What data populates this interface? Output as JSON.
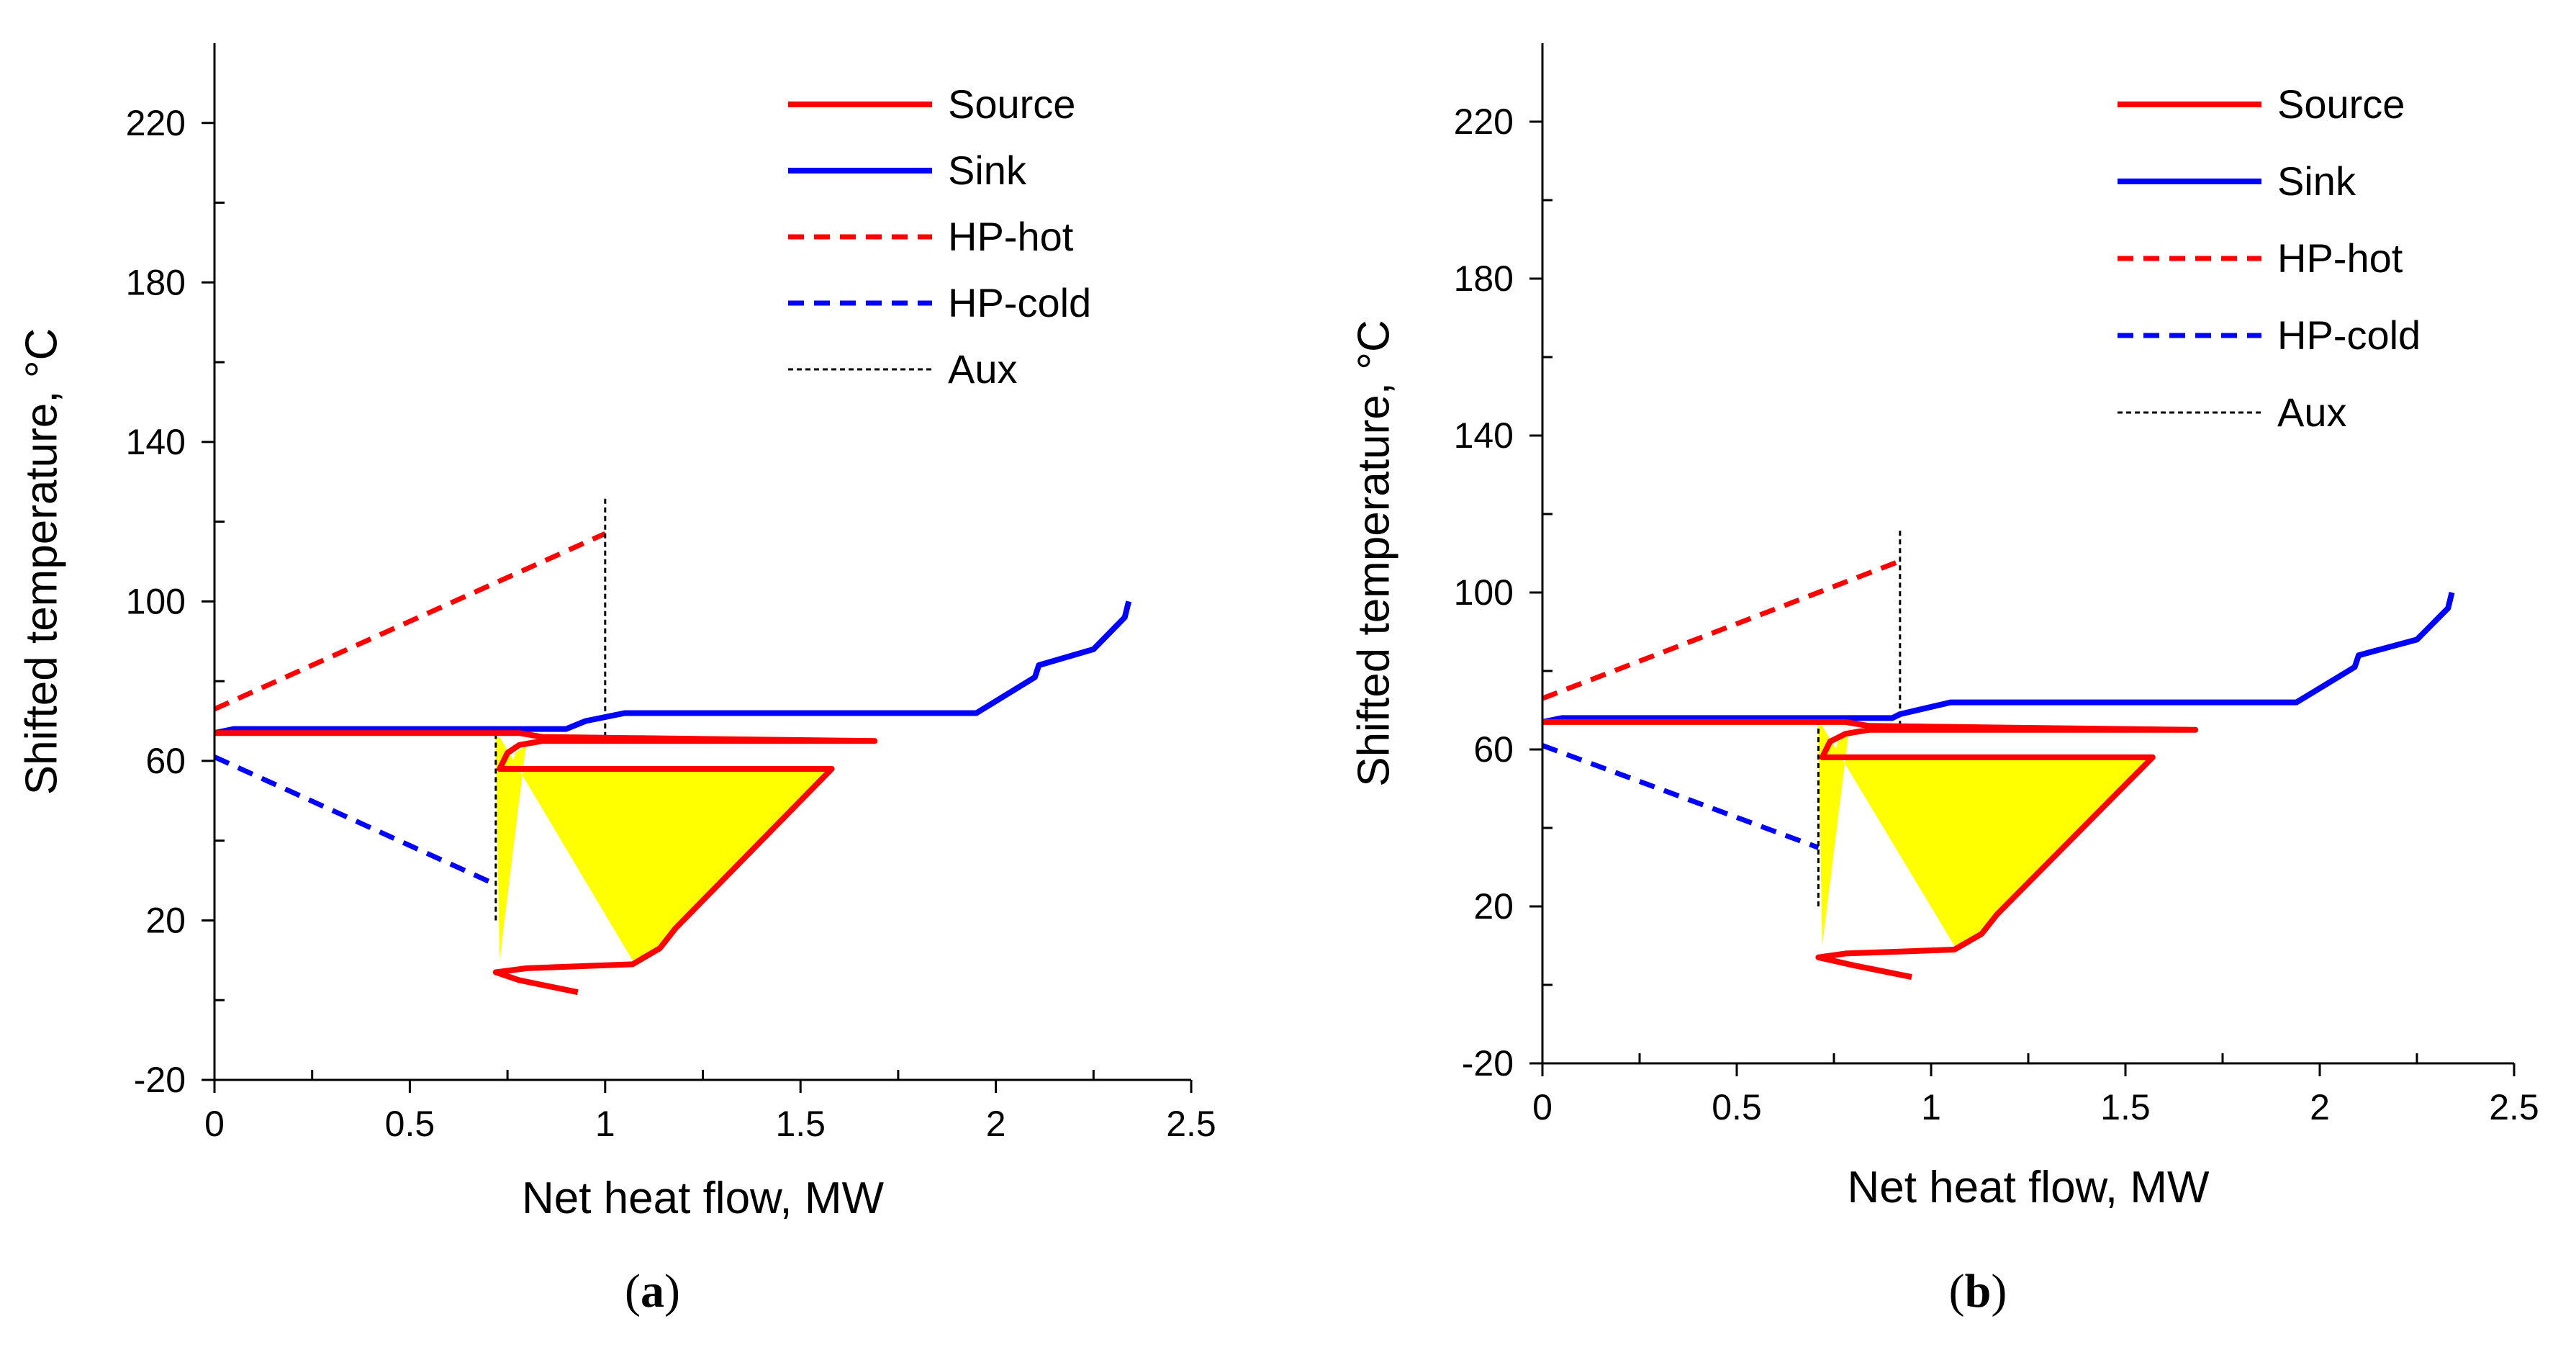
{
  "colors": {
    "source": "#ff0000",
    "sink": "#0000ff",
    "hp_hot": "#ff0000",
    "hp_cold": "#0000ff",
    "aux": "#000000",
    "fill": "#ffff00"
  },
  "chart_data": [
    {
      "type": "line",
      "panel": "a",
      "caption_open": "(",
      "caption_letter": "a",
      "caption_close": ")",
      "xlabel": "Net heat flow, MW",
      "ylabel": "Shifted  temperature, °C",
      "xlim": [
        0,
        2.5
      ],
      "ylim": [
        -20,
        240
      ],
      "xticks": [
        "0",
        "0.5",
        "1",
        "1.5",
        "2",
        "2.5"
      ],
      "xtick_values": [
        0,
        0.5,
        1,
        1.5,
        2,
        2.5
      ],
      "yticks": [
        "-20",
        "20",
        "60",
        "100",
        "140",
        "180",
        "220"
      ],
      "ytick_values": [
        -20,
        20,
        60,
        100,
        140,
        180,
        220
      ],
      "legend_position": "top-right",
      "series": [
        {
          "name": "Source",
          "style": "solid",
          "color": "#ff0000",
          "x": [
            0.93,
            0.78,
            0.72,
            0.8,
            1.07,
            1.14,
            1.18,
            1.58,
            0.73,
            0.75,
            0.78,
            0.84,
            1.69,
            0.84,
            0.78,
            0.0
          ],
          "y": [
            2,
            5,
            7,
            8,
            9,
            13,
            18,
            58,
            58,
            62,
            64,
            65,
            65,
            66,
            67,
            67
          ]
        },
        {
          "name": "Sink",
          "style": "solid",
          "color": "#0000ff",
          "x": [
            0.0,
            0.05,
            0.9,
            0.95,
            1.05,
            1.95,
            2.1,
            2.11,
            2.25,
            2.31,
            2.33,
            2.34
          ],
          "y": [
            67,
            68,
            68,
            70,
            72,
            72,
            81,
            84,
            88,
            94,
            96,
            100
          ]
        },
        {
          "name": "HP-hot",
          "style": "dashed",
          "color": "#ff0000",
          "x": [
            0,
            1.0
          ],
          "y": [
            73,
            117
          ]
        },
        {
          "name": "HP-cold",
          "style": "dashed",
          "color": "#0000ff",
          "x": [
            0,
            0.72
          ],
          "y": [
            61,
            29
          ]
        },
        {
          "name": "Aux",
          "style": "dotted",
          "color": "#000000",
          "segments": [
            {
              "x": [
                1.0,
                1.0
              ],
              "y": [
                66,
                126
              ]
            },
            {
              "x": [
                0.72,
                0.72
              ],
              "y": [
                20,
                68
              ]
            }
          ]
        }
      ],
      "fill_region": {
        "color": "#ffff00",
        "x": [
          0.73,
          0.72,
          0.72,
          0.73,
          1.07,
          1.14,
          1.18,
          1.57,
          0.76,
          0.77,
          0.8,
          0.8
        ],
        "y": [
          10,
          62,
          66,
          66,
          10,
          13,
          18,
          58,
          58,
          62,
          64,
          66
        ]
      }
    },
    {
      "type": "line",
      "panel": "b",
      "caption_open": "(",
      "caption_letter": "b",
      "caption_close": ")",
      "xlabel": "Net heat flow, MW",
      "ylabel": "Shifted  temperature, °C",
      "xlim": [
        0,
        2.5
      ],
      "ylim": [
        -20,
        240
      ],
      "xticks": [
        "0",
        "0.5",
        "1",
        "1.5",
        "2",
        "2.5"
      ],
      "xtick_values": [
        0,
        0.5,
        1,
        1.5,
        2,
        2.5
      ],
      "yticks": [
        "-20",
        "20",
        "60",
        "100",
        "140",
        "180",
        "220"
      ],
      "ytick_values": [
        -20,
        20,
        60,
        100,
        140,
        180,
        220
      ],
      "legend_position": "top-right",
      "series": [
        {
          "name": "Source",
          "style": "solid",
          "color": "#ff0000",
          "x": [
            0.95,
            0.8,
            0.71,
            0.78,
            1.06,
            1.13,
            1.17,
            1.57,
            0.72,
            0.74,
            0.78,
            0.84,
            1.68,
            0.84,
            0.78,
            0.0
          ],
          "y": [
            2,
            5,
            7,
            8,
            9,
            13,
            18,
            58,
            58,
            62,
            64,
            65,
            65,
            66,
            67,
            67
          ]
        },
        {
          "name": "Sink",
          "style": "solid",
          "color": "#0000ff",
          "x": [
            0.0,
            0.05,
            0.9,
            0.92,
            1.05,
            1.94,
            2.09,
            2.1,
            2.25,
            2.31,
            2.33,
            2.34
          ],
          "y": [
            67,
            68,
            68,
            69,
            72,
            72,
            81,
            84,
            88,
            94,
            96,
            100
          ]
        },
        {
          "name": "HP-hot",
          "style": "dashed",
          "color": "#ff0000",
          "x": [
            0,
            0.92
          ],
          "y": [
            73,
            108
          ]
        },
        {
          "name": "HP-cold",
          "style": "dashed",
          "color": "#0000ff",
          "x": [
            0,
            0.71
          ],
          "y": [
            61,
            35
          ]
        },
        {
          "name": "Aux",
          "style": "dotted",
          "color": "#000000",
          "segments": [
            {
              "x": [
                0.92,
                0.92
              ],
              "y": [
                66,
                116
              ]
            },
            {
              "x": [
                0.71,
                0.71
              ],
              "y": [
                20,
                68
              ]
            }
          ]
        }
      ],
      "fill_region": {
        "color": "#ffff00",
        "x": [
          0.72,
          0.71,
          0.71,
          0.72,
          1.06,
          1.13,
          1.17,
          1.56,
          0.75,
          0.76,
          0.79,
          0.79
        ],
        "y": [
          10,
          62,
          66,
          66,
          10,
          13,
          18,
          58,
          58,
          62,
          64,
          66
        ]
      }
    }
  ]
}
